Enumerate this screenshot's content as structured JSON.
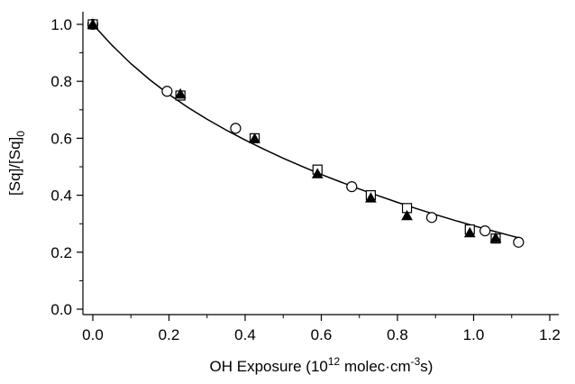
{
  "chart_data": {
    "type": "scatter",
    "xlim": [
      0.0,
      1.2
    ],
    "ylim": [
      0.0,
      1.0
    ],
    "x_ticks": [
      {
        "value": 0.0,
        "label": "0.0"
      },
      {
        "value": 0.2,
        "label": "0.2"
      },
      {
        "value": 0.4,
        "label": "0.4"
      },
      {
        "value": 0.6,
        "label": "0.6"
      },
      {
        "value": 0.8,
        "label": "0.8"
      },
      {
        "value": 1.0,
        "label": "1.0"
      },
      {
        "value": 1.2,
        "label": "1.2"
      }
    ],
    "y_ticks": [
      {
        "value": 0.0,
        "label": "0.0"
      },
      {
        "value": 0.2,
        "label": "0.2"
      },
      {
        "value": 0.4,
        "label": "0.4"
      },
      {
        "value": 0.6,
        "label": "0.6"
      },
      {
        "value": 0.8,
        "label": "0.8"
      },
      {
        "value": 1.0,
        "label": "1.0"
      }
    ],
    "xlabel": {
      "pre": "OH Exposure (10",
      "sup1": "12",
      "mid": " molec·cm",
      "sup2": "-3",
      "post": "s)"
    },
    "ylabel": {
      "pre": "[Sq]/[Sq]",
      "sub": "0"
    },
    "grid": false,
    "series": [
      {
        "marker": "open-circle",
        "points": [
          {
            "x": 0.0,
            "y": 1.0,
            "err": 0.04
          },
          {
            "x": 0.195,
            "y": 0.765,
            "err": 0.035
          },
          {
            "x": 0.375,
            "y": 0.635,
            "err": 0.03
          },
          {
            "x": 0.68,
            "y": 0.43,
            "err": 0.02
          },
          {
            "x": 0.89,
            "y": 0.322,
            "err": 0.015
          },
          {
            "x": 1.03,
            "y": 0.275,
            "err": 0.012
          },
          {
            "x": 1.118,
            "y": 0.235,
            "err": 0.01
          }
        ]
      },
      {
        "marker": "open-square",
        "points": [
          {
            "x": 0.0,
            "y": 1.0,
            "err": 0.05
          },
          {
            "x": 0.23,
            "y": 0.75,
            "err": 0.035
          },
          {
            "x": 0.425,
            "y": 0.6,
            "err": 0.03
          },
          {
            "x": 0.59,
            "y": 0.49,
            "err": 0.025
          },
          {
            "x": 0.73,
            "y": 0.4,
            "err": 0.02
          },
          {
            "x": 0.825,
            "y": 0.355,
            "err": 0.015
          },
          {
            "x": 0.99,
            "y": 0.28,
            "err": 0.012
          },
          {
            "x": 1.058,
            "y": 0.248,
            "err": 0.01
          }
        ]
      },
      {
        "marker": "filled-triangle",
        "points": [
          {
            "x": 0.0,
            "y": 1.0,
            "err": 0.0
          },
          {
            "x": 0.23,
            "y": 0.755,
            "err": 0.0
          },
          {
            "x": 0.425,
            "y": 0.598,
            "err": 0.0
          },
          {
            "x": 0.59,
            "y": 0.475,
            "err": 0.0
          },
          {
            "x": 0.73,
            "y": 0.39,
            "err": 0.0
          },
          {
            "x": 0.825,
            "y": 0.328,
            "err": 0.0
          },
          {
            "x": 0.99,
            "y": 0.268,
            "err": 0.0
          },
          {
            "x": 1.058,
            "y": 0.25,
            "err": 0.0
          }
        ]
      }
    ],
    "fit_curve": {
      "style": "solid",
      "x": [
        0.0,
        0.05,
        0.1,
        0.15,
        0.2,
        0.25,
        0.3,
        0.35,
        0.4,
        0.45,
        0.5,
        0.55,
        0.6,
        0.65,
        0.7,
        0.75,
        0.8,
        0.85,
        0.9,
        0.95,
        1.0,
        1.05,
        1.1,
        1.12
      ],
      "y": [
        1.0,
        0.927,
        0.862,
        0.805,
        0.754,
        0.708,
        0.667,
        0.629,
        0.594,
        0.561,
        0.53,
        0.501,
        0.473,
        0.447,
        0.422,
        0.398,
        0.375,
        0.353,
        0.332,
        0.312,
        0.293,
        0.275,
        0.257,
        0.25
      ]
    }
  }
}
